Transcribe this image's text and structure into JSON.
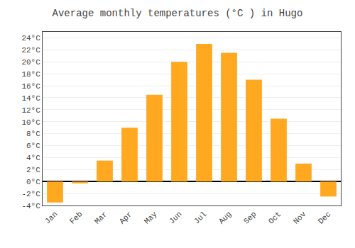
{
  "chart_data": {
    "type": "bar",
    "title": "Average monthly temperatures (°C ) in Hugo",
    "categories": [
      "Jan",
      "Feb",
      "Mar",
      "Apr",
      "May",
      "Jun",
      "Jul",
      "Aug",
      "Sep",
      "Oct",
      "Nov",
      "Dec"
    ],
    "values": [
      -3.5,
      -0.3,
      3.5,
      9.0,
      14.5,
      20.0,
      23.0,
      21.5,
      17.0,
      10.5,
      3.0,
      -2.5
    ],
    "color": "#FFA820",
    "ylim": [
      -4,
      25
    ],
    "yticks": [
      {
        "value": -4,
        "label": "-4°C"
      },
      {
        "value": -2,
        "label": "-2°C"
      },
      {
        "value": 0,
        "label": "0°C"
      },
      {
        "value": 2,
        "label": "2°C"
      },
      {
        "value": 4,
        "label": "4°C"
      },
      {
        "value": 6,
        "label": "6°C"
      },
      {
        "value": 8,
        "label": "8°C"
      },
      {
        "value": 10,
        "label": "10°C"
      },
      {
        "value": 12,
        "label": "12°C"
      },
      {
        "value": 14,
        "label": "14°C"
      },
      {
        "value": 16,
        "label": "16°C"
      },
      {
        "value": 18,
        "label": "18°C"
      },
      {
        "value": 20,
        "label": "20°C"
      },
      {
        "value": 22,
        "label": "22°C"
      },
      {
        "value": 24,
        "label": "24°C"
      }
    ],
    "grid": true
  }
}
